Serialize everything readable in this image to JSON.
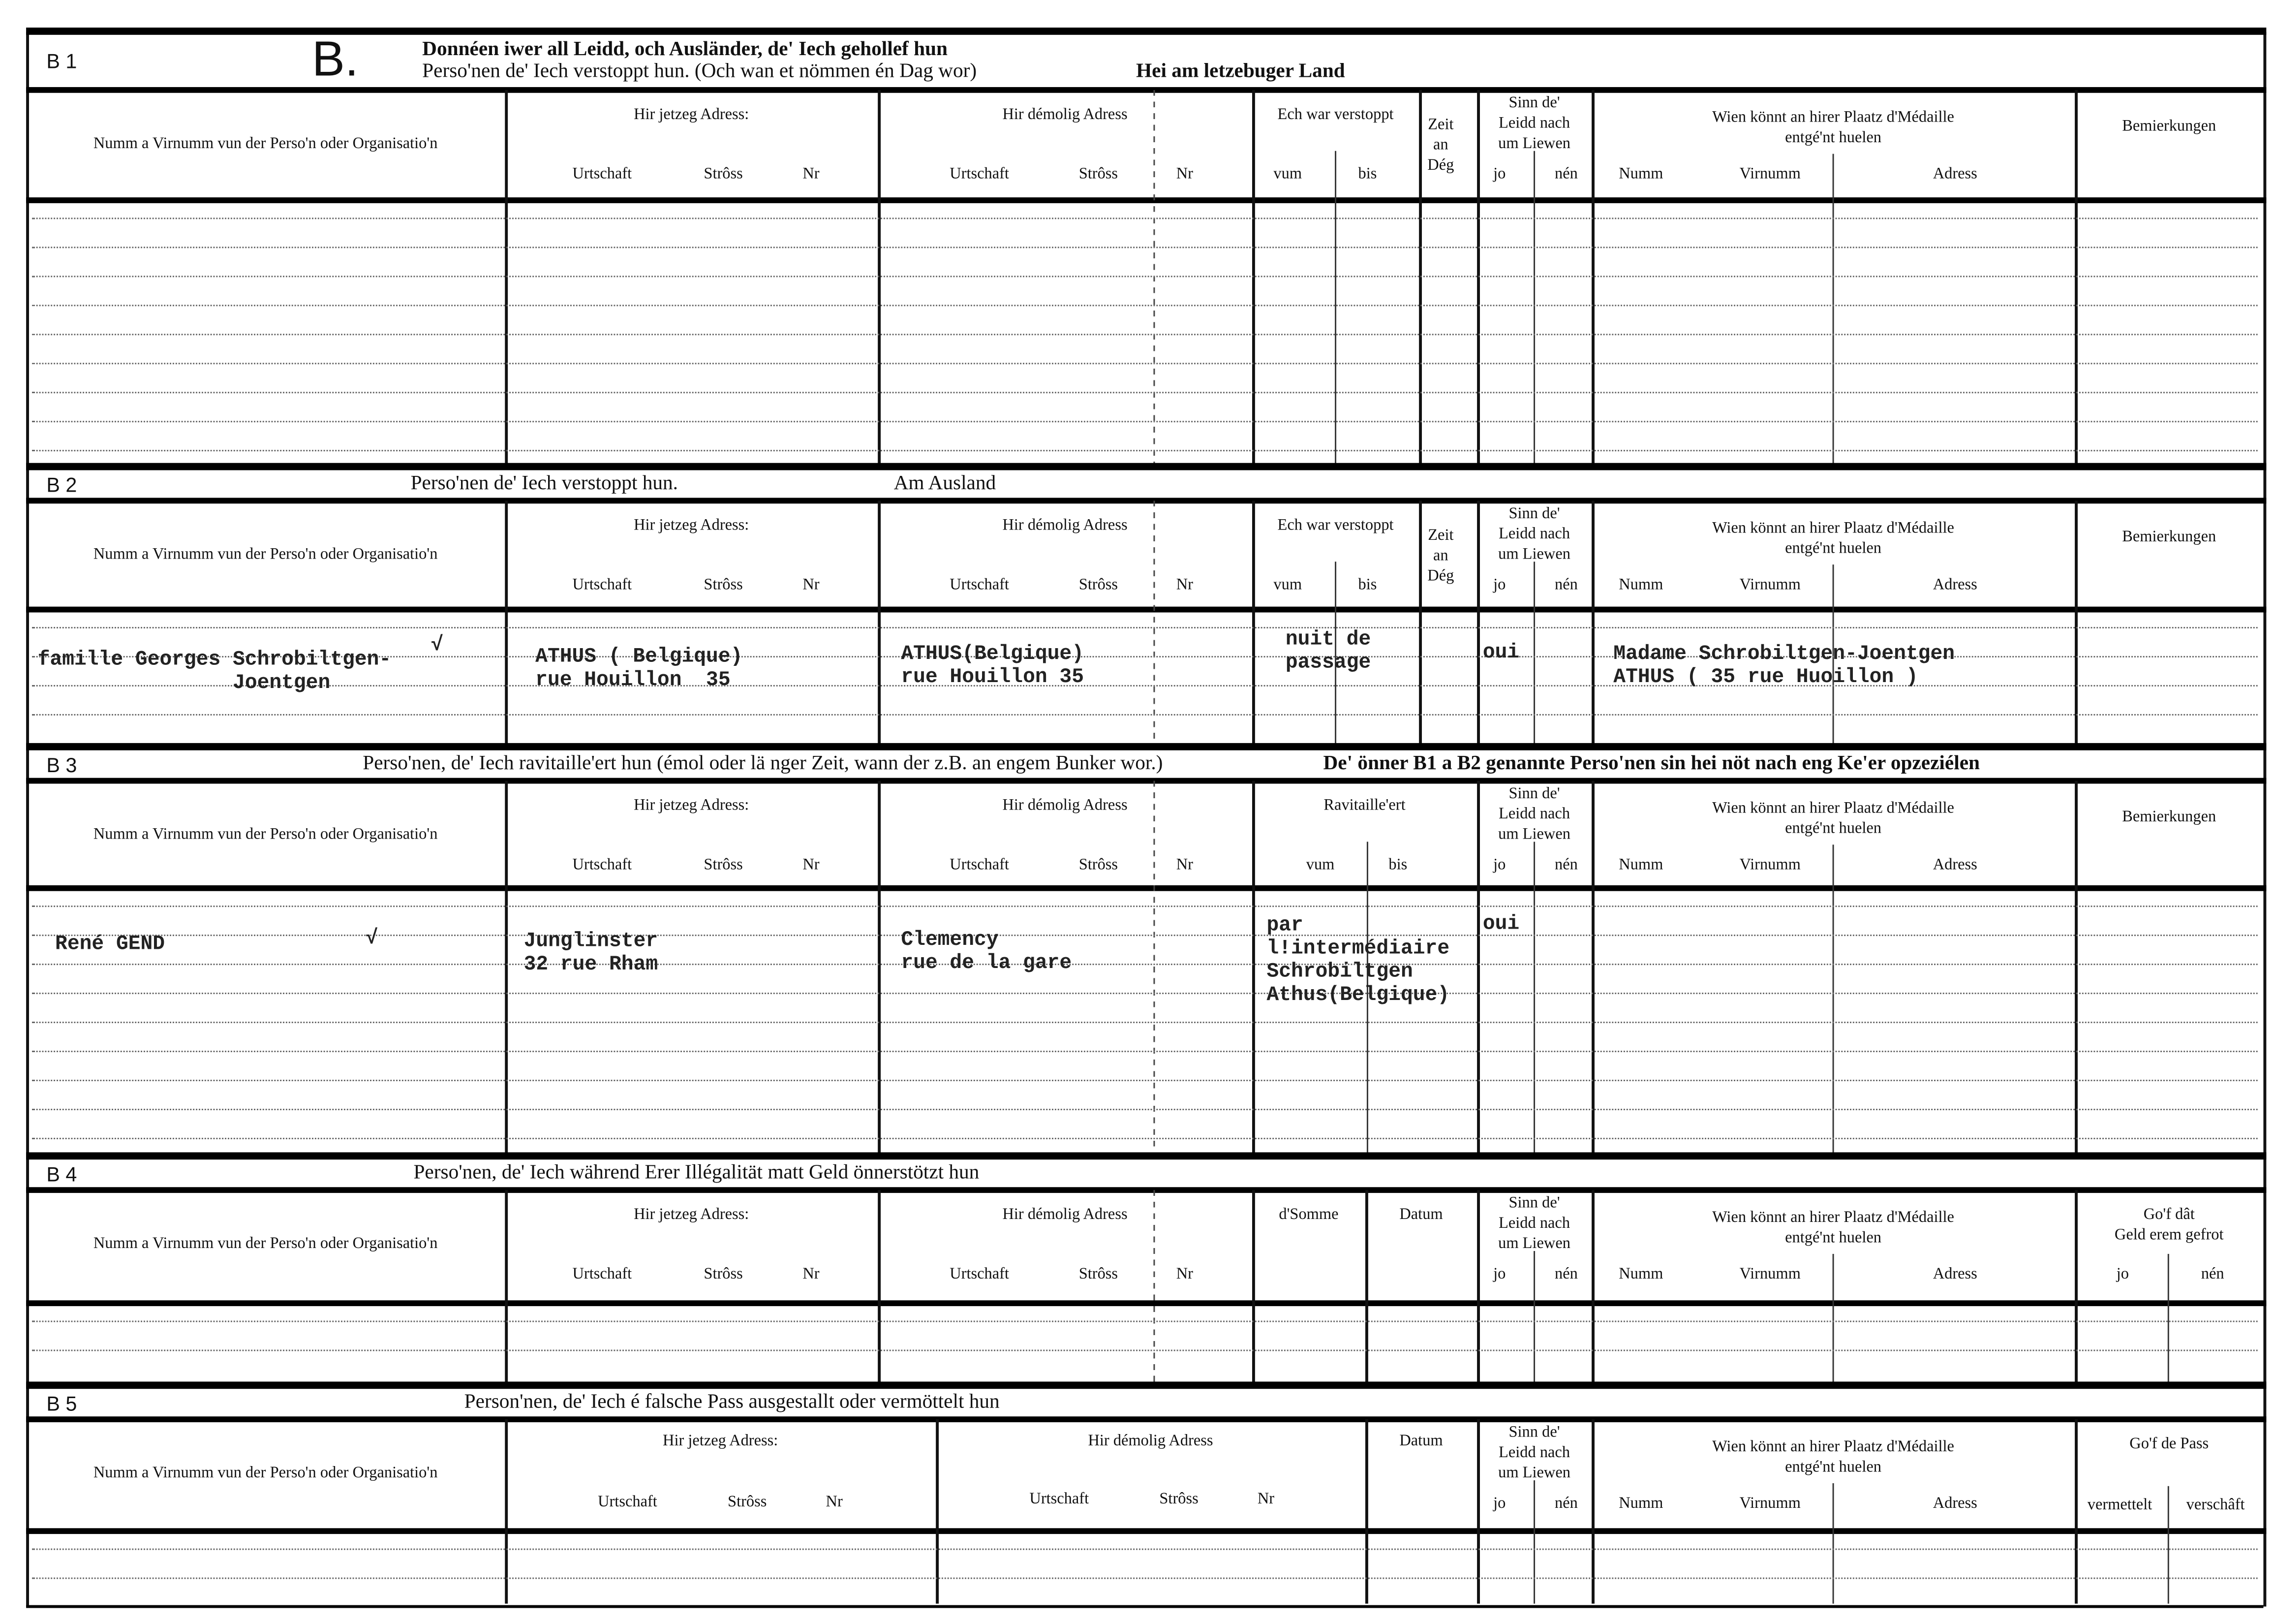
{
  "mark": "B.",
  "hdr": {
    "name": "Numm a Virnumm vun der Perso'n oder Organisatio'n",
    "current": "Hir jetzeg Adress:",
    "former": "Hir démolig Adress",
    "town": "Urtschaft",
    "street": "Strôss",
    "nr": "Nr",
    "hidden": "Ech war verstoppt",
    "from": "vum",
    "to": "bis",
    "days": "Zeit\nan\nDég",
    "alive": "Sinn  de'\nLeidd  nach\num Liewen",
    "yes": "jo",
    "no": "nén",
    "medal": "Wien  könnt  an  hirer  Plaatz  d'Médaille\nentgé'nt huelen",
    "surname": "Numm",
    "firstname": "Virnumm",
    "address": "Adress",
    "remarks": "Bemierkungen",
    "supplied": "Ravitaille'ert",
    "sum": "d'Somme",
    "date": "Datum",
    "money_back": "Go'f  dât\nGeld erem gefrot",
    "pass": "Go'f de Pass",
    "arranged": "vermettelt",
    "provided": "verschâft"
  },
  "sections": [
    {
      "code": "B 1",
      "title1": "Donnéen iwer all Leidd, och Ausländer, de' Iech gehollef hun",
      "title2": "Perso'nen de' Iech verstoppt hun.  (Och wan et nömmen én Dag wor)",
      "title3": "Hei am letzebuger Land"
    },
    {
      "code": "B 2",
      "title1": "Perso'nen de' Iech verstoppt hun.",
      "title3": "Am  Ausland"
    },
    {
      "code": "B 3",
      "title1": "Perso'nen, de' Iech ravitaille'ert hun (émol oder lä nger Zeit, wann der z.B. an engem Bunker wor.)",
      "title3": "De'  önner B1 a B2 genannte Perso'nen sin hei nöt nach eng Ke'er opzeziélen"
    },
    {
      "code": "B 4",
      "title1": "Perso'nen,  de'  Iech  während  Erer  Illégalität  matt  Geld  önnerstötzt hun"
    },
    {
      "code": "B 5",
      "title1": "Person'nen,  de'  Iech  é falsche Pass  ausgestallt oder  vermöttelt hun"
    }
  ],
  "entries": {
    "b2": {
      "name": "famille Georges Schrobiltgen-\n                Joentgen",
      "check": "√",
      "current": "ATHUS ( Belgique)\nrue Houillon  35",
      "former": "ATHUS(Belgique)\nrue Houillon 35",
      "hidden": "nuit de\npassage",
      "alive_yes": "oui",
      "medal": "Madame Schrobiltgen-Joentgen\nATHUS ( 35 rue Huoillon )"
    },
    "b3": {
      "name": "René GEND",
      "check": "√",
      "current": "Junglinster\n32 rue Rham",
      "former": "Clemency\nrue de la gare",
      "supplied": "par\nl!intermédiaire\nSchrobiltgen\nAthus(Belgique)",
      "alive_yes": "oui"
    }
  }
}
